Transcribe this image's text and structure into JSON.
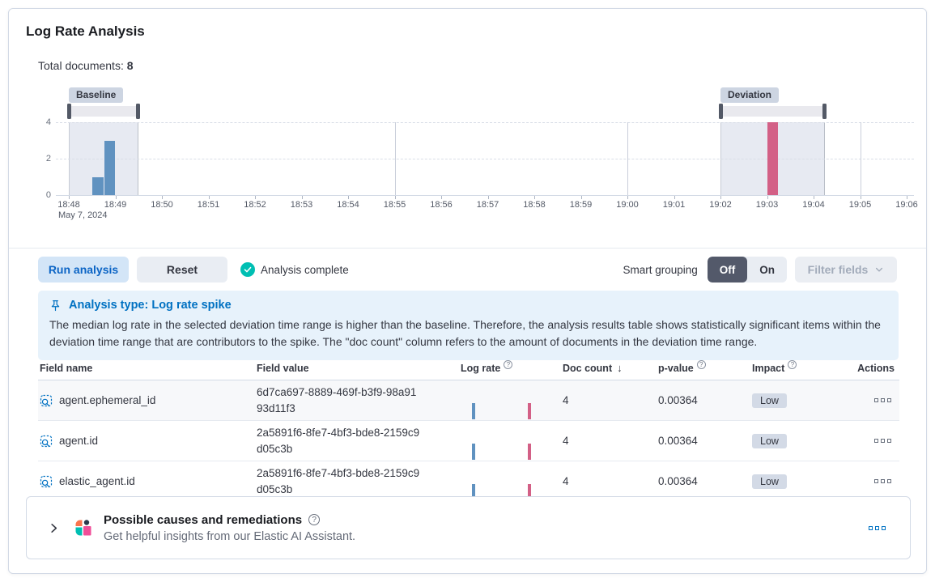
{
  "panel": {
    "title": "Log Rate Analysis"
  },
  "summary": {
    "label": "Total documents:",
    "value": "8"
  },
  "chart_data": {
    "type": "bar",
    "title": "Document count per time bucket with baseline and deviation selections",
    "xlabel": "",
    "ylabel": "",
    "x_date_label": "May 7, 2024",
    "x_ticks": [
      "18:48",
      "18:49",
      "18:50",
      "18:51",
      "18:52",
      "18:53",
      "18:54",
      "18:55",
      "18:56",
      "18:57",
      "18:58",
      "18:59",
      "19:00",
      "19:01",
      "19:02",
      "19:03",
      "19:04",
      "19:05",
      "19:06"
    ],
    "y_ticks": [
      4,
      2,
      0
    ],
    "ylim": [
      0,
      4
    ],
    "grid": true,
    "legend_position": "none",
    "solid_grid_minutes": [
      7,
      12,
      17
    ],
    "bars": [
      {
        "start_min": 0.5,
        "end_min": 0.75,
        "value": 1,
        "series": "baseline"
      },
      {
        "start_min": 0.75,
        "end_min": 1.0,
        "value": 3,
        "series": "baseline"
      },
      {
        "start_min": 15.0,
        "end_min": 15.25,
        "value": 4,
        "series": "deviation"
      }
    ],
    "windows": [
      {
        "id": "baseline",
        "label": "Baseline",
        "start_min": 0,
        "end_min": 1.5
      },
      {
        "id": "deviation",
        "label": "Deviation",
        "start_min": 14,
        "end_min": 16.25
      }
    ]
  },
  "toolbar": {
    "run_button": "Run analysis",
    "reset_button": "Reset",
    "status": "Analysis complete",
    "smart_grouping_label": "Smart grouping",
    "toggle_off": "Off",
    "toggle_on": "On",
    "filter_fields": "Filter fields"
  },
  "callout": {
    "title": "Analysis type: Log rate spike",
    "body": "The median log rate in the selected deviation time range is higher than the baseline. Therefore, the analysis results table shows statistically significant items within the deviation time range that are contributors to the spike. The \"doc count\" column refers to the amount of documents in the deviation time range."
  },
  "table": {
    "headers": {
      "field_name": "Field name",
      "field_value": "Field value",
      "log_rate": "Log rate",
      "doc_count": "Doc count",
      "p_value": "p-value",
      "impact": "Impact",
      "actions": "Actions"
    },
    "sort": {
      "column": "doc_count",
      "direction": "desc",
      "arrow": "↓"
    },
    "rows": [
      {
        "field_name": "agent.ephemeral_id",
        "field_value": "6d7ca697-8889-469f-b3f9-98a9193d11f3",
        "doc_count": "4",
        "p_value": "0.00364",
        "impact": "Low"
      },
      {
        "field_name": "agent.id",
        "field_value": "2a5891f6-8fe7-4bf3-bde8-2159c9d05c3b",
        "doc_count": "4",
        "p_value": "0.00364",
        "impact": "Low"
      },
      {
        "field_name": "elastic_agent.id",
        "field_value": "2a5891f6-8fe7-4bf3-bde8-2159c9d05c3b",
        "doc_count": "4",
        "p_value": "0.00364",
        "impact": "Low"
      }
    ]
  },
  "insights": {
    "title": "Possible causes and remediations",
    "subtitle": "Get helpful insights from our Elastic AI Assistant."
  },
  "colors": {
    "baseline_bar": "#6092C0",
    "deviation_bar": "#D36086",
    "window_bg": "#E7EAF2",
    "brush_track": "#E9E9EE",
    "brush_handle": "#535966",
    "primary": "#0071C2",
    "success": "#00BFB3",
    "badge_bg": "#CDD5E2",
    "impact_badge_bg": "#D3DAE6",
    "toggle_active_bg": "#53596A",
    "callout_bg": "#E7F2FB",
    "border": "#D3DAE6"
  }
}
